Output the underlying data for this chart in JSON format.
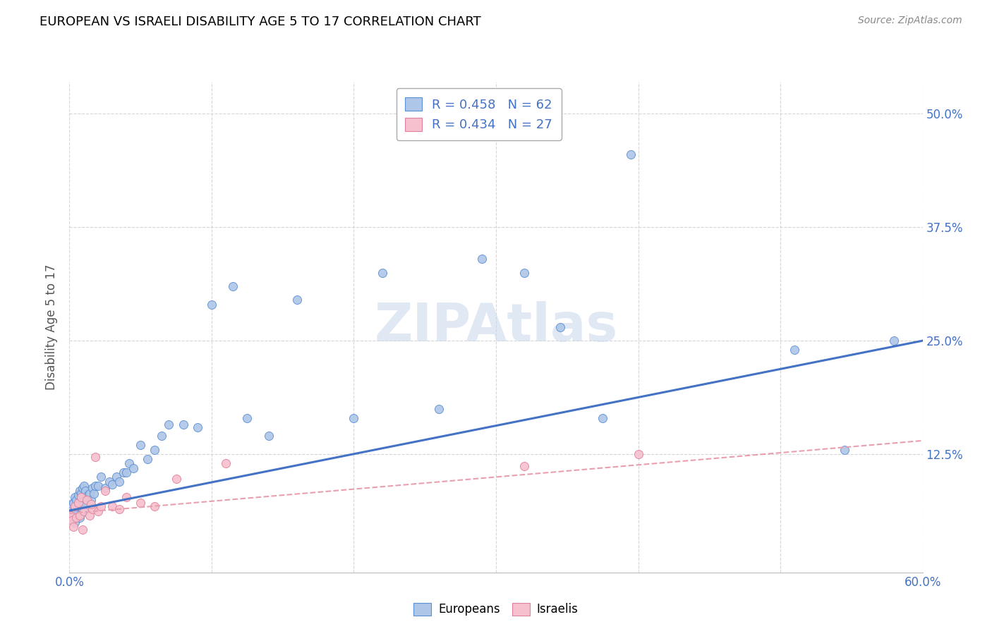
{
  "title": "EUROPEAN VS ISRAELI DISABILITY AGE 5 TO 17 CORRELATION CHART",
  "source": "Source: ZipAtlas.com",
  "ylabel": "Disability Age 5 to 17",
  "xlim": [
    0.0,
    0.6
  ],
  "ylim": [
    -0.005,
    0.535
  ],
  "ytick_positions": [
    0.125,
    0.25,
    0.375,
    0.5
  ],
  "ytick_labels": [
    "12.5%",
    "25.0%",
    "37.5%",
    "50.0%"
  ],
  "xtick_positions": [
    0.0,
    0.1,
    0.2,
    0.3,
    0.4,
    0.5,
    0.6
  ],
  "xtick_labels": [
    "0.0%",
    "",
    "",
    "",
    "",
    "",
    "60.0%"
  ],
  "legend_european_R": "R = 0.458",
  "legend_european_N": "N = 62",
  "legend_israeli_R": "R = 0.434",
  "legend_israeli_N": "N = 27",
  "european_face_color": "#aec6e8",
  "european_edge_color": "#5b8fd4",
  "israeli_face_color": "#f7c0ce",
  "israeli_edge_color": "#e0809a",
  "european_line_color": "#4472c4",
  "israeli_line_color": "#e8a0b0",
  "background_color": "#ffffff",
  "grid_color": "#cccccc",
  "watermark_color": "#ccd9ee",
  "european_scatter_x": [
    0.001,
    0.002,
    0.002,
    0.003,
    0.003,
    0.004,
    0.004,
    0.004,
    0.005,
    0.005,
    0.006,
    0.006,
    0.007,
    0.007,
    0.008,
    0.008,
    0.009,
    0.009,
    0.01,
    0.01,
    0.011,
    0.012,
    0.013,
    0.014,
    0.015,
    0.016,
    0.017,
    0.018,
    0.02,
    0.022,
    0.025,
    0.028,
    0.03,
    0.033,
    0.035,
    0.038,
    0.04,
    0.042,
    0.045,
    0.05,
    0.055,
    0.06,
    0.065,
    0.07,
    0.08,
    0.09,
    0.1,
    0.115,
    0.125,
    0.14,
    0.16,
    0.2,
    0.22,
    0.26,
    0.29,
    0.32,
    0.345,
    0.375,
    0.395,
    0.51,
    0.545,
    0.58
  ],
  "european_scatter_y": [
    0.06,
    0.055,
    0.07,
    0.058,
    0.072,
    0.065,
    0.078,
    0.05,
    0.062,
    0.075,
    0.068,
    0.08,
    0.055,
    0.085,
    0.06,
    0.082,
    0.065,
    0.088,
    0.07,
    0.09,
    0.085,
    0.078,
    0.08,
    0.082,
    0.075,
    0.088,
    0.082,
    0.09,
    0.09,
    0.1,
    0.088,
    0.095,
    0.092,
    0.1,
    0.095,
    0.105,
    0.105,
    0.115,
    0.11,
    0.135,
    0.12,
    0.13,
    0.145,
    0.158,
    0.158,
    0.155,
    0.29,
    0.31,
    0.165,
    0.145,
    0.295,
    0.165,
    0.325,
    0.175,
    0.34,
    0.325,
    0.265,
    0.165,
    0.455,
    0.24,
    0.13,
    0.25
  ],
  "israeli_scatter_x": [
    0.001,
    0.002,
    0.003,
    0.004,
    0.005,
    0.006,
    0.007,
    0.008,
    0.009,
    0.01,
    0.012,
    0.014,
    0.016,
    0.018,
    0.02,
    0.022,
    0.025,
    0.03,
    0.035,
    0.04,
    0.05,
    0.06,
    0.075,
    0.11,
    0.32,
    0.4,
    0.015
  ],
  "israeli_scatter_y": [
    0.058,
    0.052,
    0.045,
    0.068,
    0.055,
    0.072,
    0.058,
    0.078,
    0.042,
    0.062,
    0.075,
    0.058,
    0.065,
    0.122,
    0.062,
    0.068,
    0.085,
    0.068,
    0.065,
    0.078,
    0.072,
    0.068,
    0.098,
    0.115,
    0.112,
    0.125,
    0.07
  ],
  "european_trend_x": [
    0.0,
    0.6
  ],
  "european_trend_y": [
    0.063,
    0.25
  ],
  "israeli_trend_x": [
    0.0,
    0.6
  ],
  "israeli_trend_y": [
    0.06,
    0.14
  ]
}
